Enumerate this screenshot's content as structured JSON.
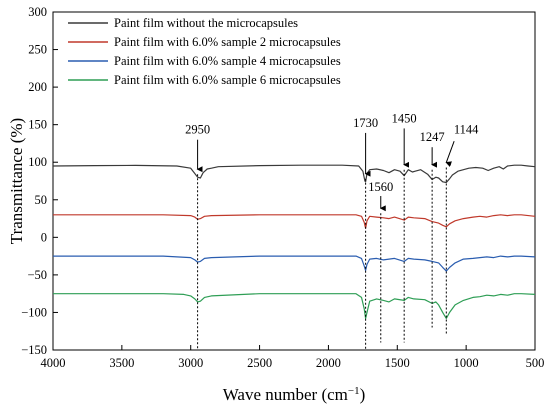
{
  "chart_data": {
    "type": "line",
    "xlabel": "Wave number (cm",
    "xlabel_sup": "−1",
    "xlabel_end": ")",
    "ylabel": "Transmittance (%)",
    "xlim": [
      4000,
      500
    ],
    "ylim": [
      -150,
      300
    ],
    "x_ticks": [
      4000,
      3500,
      3000,
      2500,
      2000,
      1500,
      1000,
      500
    ],
    "y_ticks": [
      300,
      250,
      200,
      150,
      100,
      50,
      0,
      -50,
      -100,
      -150
    ],
    "grid": false,
    "legend_position": "top-left",
    "series": [
      {
        "name": "Paint film without the microcapsules",
        "color": "#3a3a3a",
        "baseline": 95,
        "points": [
          [
            4000,
            95
          ],
          [
            3700,
            95.5
          ],
          [
            3400,
            95.8
          ],
          [
            3100,
            95
          ],
          [
            3000,
            92
          ],
          [
            2970,
            85
          ],
          [
            2950,
            80
          ],
          [
            2930,
            79
          ],
          [
            2910,
            86
          ],
          [
            2880,
            91
          ],
          [
            2850,
            92
          ],
          [
            2800,
            94
          ],
          [
            2500,
            95.5
          ],
          [
            2200,
            96
          ],
          [
            1900,
            96
          ],
          [
            1780,
            95
          ],
          [
            1750,
            88
          ],
          [
            1735,
            75
          ],
          [
            1730,
            74
          ],
          [
            1720,
            85
          ],
          [
            1700,
            90
          ],
          [
            1650,
            91
          ],
          [
            1600,
            89
          ],
          [
            1560,
            86
          ],
          [
            1520,
            90
          ],
          [
            1480,
            88
          ],
          [
            1450,
            82
          ],
          [
            1420,
            90
          ],
          [
            1390,
            87
          ],
          [
            1370,
            88
          ],
          [
            1330,
            90
          ],
          [
            1280,
            84
          ],
          [
            1247,
            77
          ],
          [
            1220,
            80
          ],
          [
            1200,
            79
          ],
          [
            1170,
            74
          ],
          [
            1144,
            73
          ],
          [
            1120,
            78
          ],
          [
            1100,
            83
          ],
          [
            1060,
            88
          ],
          [
            1020,
            90
          ],
          [
            980,
            92
          ],
          [
            930,
            93
          ],
          [
            880,
            92
          ],
          [
            840,
            89
          ],
          [
            800,
            92
          ],
          [
            760,
            94
          ],
          [
            730,
            91
          ],
          [
            700,
            95
          ],
          [
            650,
            96
          ],
          [
            600,
            96
          ],
          [
            550,
            95
          ],
          [
            500,
            94
          ]
        ]
      },
      {
        "name": "Paint film with 6.0% sample 2 microcapsules",
        "color": "#c0392b",
        "baseline": 30,
        "points": [
          [
            4000,
            30
          ],
          [
            3600,
            30
          ],
          [
            3200,
            30
          ],
          [
            3000,
            29
          ],
          [
            2970,
            27
          ],
          [
            2950,
            24
          ],
          [
            2930,
            25
          ],
          [
            2900,
            28
          ],
          [
            2850,
            29
          ],
          [
            2500,
            30
          ],
          [
            2200,
            30
          ],
          [
            1800,
            30
          ],
          [
            1760,
            28
          ],
          [
            1740,
            20
          ],
          [
            1730,
            12
          ],
          [
            1720,
            22
          ],
          [
            1700,
            28
          ],
          [
            1650,
            27
          ],
          [
            1600,
            26
          ],
          [
            1560,
            25
          ],
          [
            1520,
            27
          ],
          [
            1450,
            23
          ],
          [
            1420,
            27
          ],
          [
            1380,
            26
          ],
          [
            1300,
            25
          ],
          [
            1247,
            21
          ],
          [
            1200,
            19
          ],
          [
            1170,
            16
          ],
          [
            1144,
            14
          ],
          [
            1120,
            18
          ],
          [
            1080,
            22
          ],
          [
            1020,
            25
          ],
          [
            950,
            27
          ],
          [
            900,
            28
          ],
          [
            850,
            27
          ],
          [
            800,
            29
          ],
          [
            750,
            30
          ],
          [
            700,
            29
          ],
          [
            650,
            30
          ],
          [
            600,
            30
          ],
          [
            500,
            28
          ]
        ]
      },
      {
        "name": "Paint film with 6.0% sample 4 microcapsules",
        "color": "#2a5db0",
        "baseline": -25,
        "points": [
          [
            4000,
            -25
          ],
          [
            3600,
            -25
          ],
          [
            3200,
            -25
          ],
          [
            3000,
            -27
          ],
          [
            2970,
            -30
          ],
          [
            2950,
            -33
          ],
          [
            2930,
            -32
          ],
          [
            2900,
            -28
          ],
          [
            2850,
            -27
          ],
          [
            2500,
            -25
          ],
          [
            2200,
            -25
          ],
          [
            1800,
            -25
          ],
          [
            1760,
            -28
          ],
          [
            1740,
            -38
          ],
          [
            1730,
            -44
          ],
          [
            1720,
            -36
          ],
          [
            1700,
            -29
          ],
          [
            1650,
            -28
          ],
          [
            1600,
            -30
          ],
          [
            1560,
            -29
          ],
          [
            1520,
            -28
          ],
          [
            1450,
            -32
          ],
          [
            1420,
            -28
          ],
          [
            1380,
            -29
          ],
          [
            1300,
            -30
          ],
          [
            1247,
            -32
          ],
          [
            1200,
            -34
          ],
          [
            1170,
            -40
          ],
          [
            1144,
            -45
          ],
          [
            1120,
            -40
          ],
          [
            1080,
            -34
          ],
          [
            1020,
            -29
          ],
          [
            950,
            -28
          ],
          [
            900,
            -27
          ],
          [
            850,
            -26
          ],
          [
            800,
            -27
          ],
          [
            750,
            -25
          ],
          [
            700,
            -26
          ],
          [
            650,
            -25
          ],
          [
            600,
            -25
          ],
          [
            500,
            -26
          ]
        ]
      },
      {
        "name": "Paint film with 6.0% sample 6 microcapsules",
        "color": "#2e9e55",
        "baseline": -75,
        "points": [
          [
            4000,
            -75
          ],
          [
            3600,
            -75
          ],
          [
            3200,
            -75
          ],
          [
            3050,
            -76
          ],
          [
            3000,
            -78
          ],
          [
            2970,
            -82
          ],
          [
            2950,
            -86
          ],
          [
            2930,
            -85
          ],
          [
            2900,
            -80
          ],
          [
            2850,
            -78
          ],
          [
            2500,
            -75
          ],
          [
            2200,
            -75
          ],
          [
            1800,
            -75
          ],
          [
            1760,
            -80
          ],
          [
            1740,
            -95
          ],
          [
            1730,
            -108
          ],
          [
            1720,
            -100
          ],
          [
            1700,
            -85
          ],
          [
            1650,
            -82
          ],
          [
            1600,
            -84
          ],
          [
            1560,
            -86
          ],
          [
            1520,
            -82
          ],
          [
            1450,
            -84
          ],
          [
            1420,
            -80
          ],
          [
            1380,
            -82
          ],
          [
            1300,
            -83
          ],
          [
            1247,
            -88
          ],
          [
            1220,
            -86
          ],
          [
            1200,
            -90
          ],
          [
            1170,
            -100
          ],
          [
            1144,
            -108
          ],
          [
            1120,
            -100
          ],
          [
            1080,
            -90
          ],
          [
            1020,
            -84
          ],
          [
            950,
            -80
          ],
          [
            900,
            -79
          ],
          [
            850,
            -77
          ],
          [
            800,
            -78
          ],
          [
            750,
            -76
          ],
          [
            700,
            -77
          ],
          [
            650,
            -75
          ],
          [
            600,
            -75
          ],
          [
            500,
            -76
          ]
        ]
      }
    ],
    "annotations": [
      {
        "label": "2950",
        "x": 2950,
        "y_text": 138,
        "arrow_from": 130,
        "arrow_to": 84,
        "line_to": -150
      },
      {
        "label": "1730",
        "x": 1730,
        "y_text": 147,
        "arrow_from": 139,
        "arrow_to": 78,
        "line_to": -150
      },
      {
        "label": "1560",
        "x": 1620,
        "y_text": 62,
        "arrow_from": 55,
        "arrow_to": 32,
        "line_to": -140
      },
      {
        "label": "1450",
        "x": 1450,
        "y_text": 153,
        "arrow_from": 145,
        "arrow_to": 90,
        "line_to": -140
      },
      {
        "label": "1247",
        "x": 1247,
        "y_text": 128,
        "arrow_from": 120,
        "arrow_to": 90,
        "line_to": -120
      },
      {
        "label": "1144",
        "x": 1144,
        "y_text": 138,
        "arrow_from": 128,
        "arrow_to": 93,
        "line_to": -130,
        "text_x": 1000
      }
    ]
  }
}
